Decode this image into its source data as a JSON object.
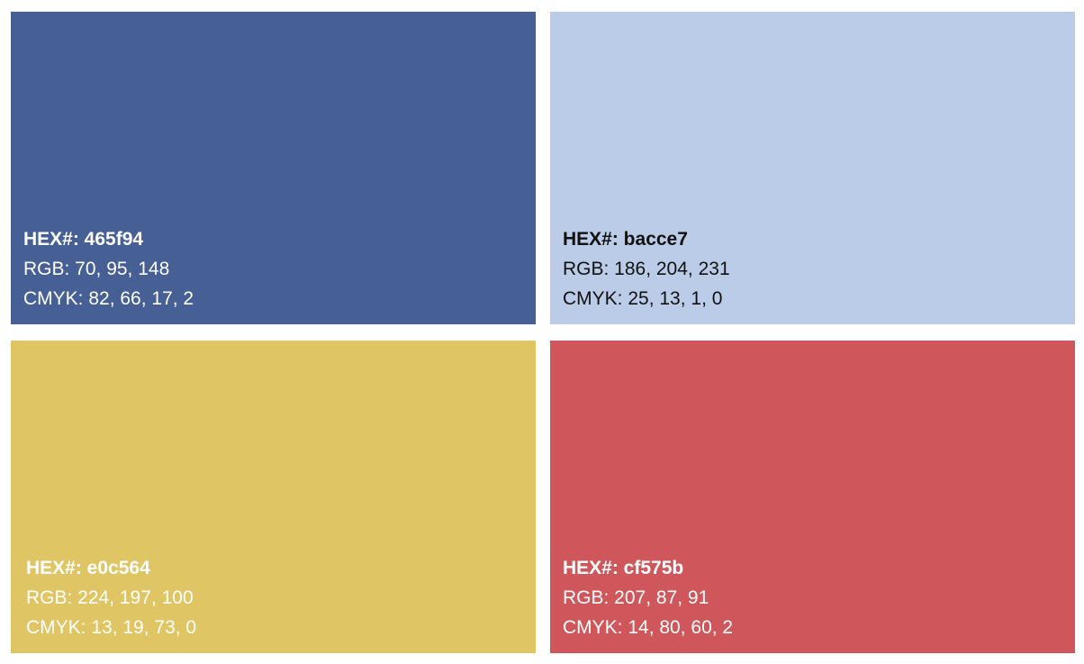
{
  "swatches": [
    {
      "color": "#465f94",
      "text_color": "#ffffff",
      "hex_label": "HEX#: 465f94",
      "rgb_label": "RGB: 70, 95, 148",
      "cmyk_label": "CMYK: 82, 66, 17, 2"
    },
    {
      "color": "#bacce7",
      "text_color": "#111111",
      "hex_label": "HEX#: bacce7",
      "rgb_label": "RGB: 186, 204, 231",
      "cmyk_label": "CMYK: 25, 13, 1, 0"
    },
    {
      "color": "#e0c564",
      "text_color": "#ffffff",
      "hex_label": "HEX#: e0c564",
      "rgb_label": "RGB: 224, 197, 100",
      "cmyk_label": "CMYK: 13, 19, 73, 0"
    },
    {
      "color": "#cf575b",
      "text_color": "#ffffff",
      "hex_label": "HEX#: cf575b",
      "rgb_label": "RGB: 207, 87, 91",
      "cmyk_label": "CMYK: 14, 80, 60, 2"
    }
  ]
}
